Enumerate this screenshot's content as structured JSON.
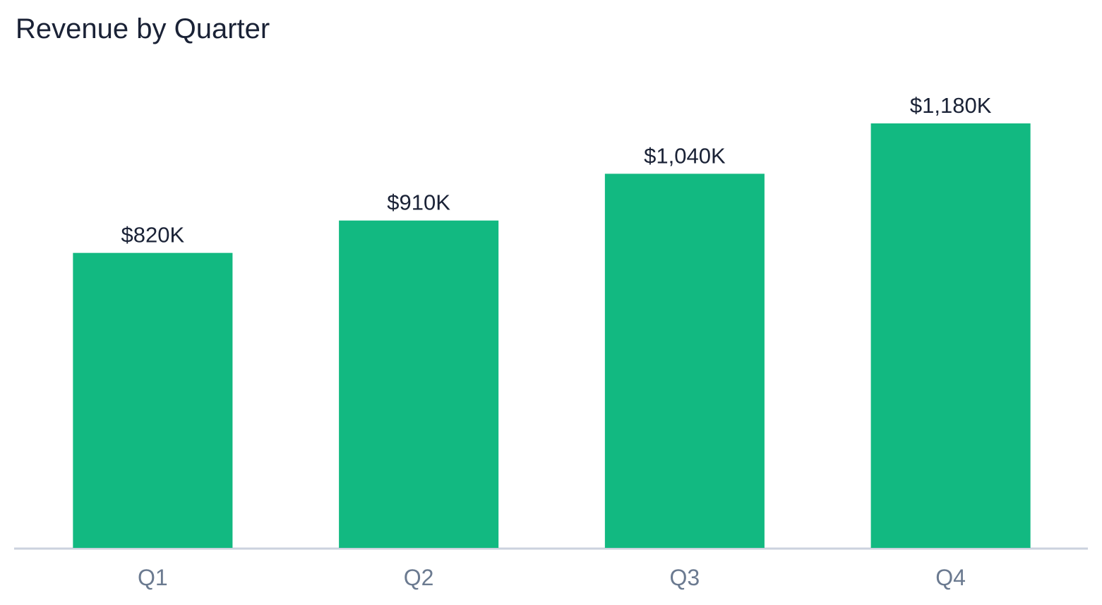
{
  "chart_data": {
    "type": "bar",
    "title": "Revenue by Quarter",
    "categories": [
      "Q1",
      "Q2",
      "Q3",
      "Q4"
    ],
    "values": [
      820,
      910,
      1040,
      1180
    ],
    "value_labels": [
      "$820K",
      "$910K",
      "$1,040K",
      "$1,180K"
    ],
    "color": "#12b981"
  }
}
